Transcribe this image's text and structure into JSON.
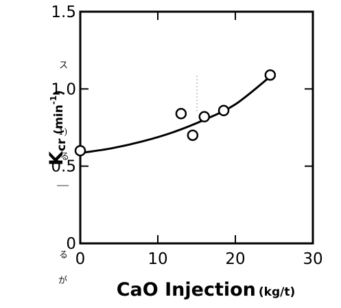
{
  "chart_data": {
    "type": "scatter",
    "title": "",
    "xlabel": "CaO Injection",
    "xlabel_units": "(kg/t)",
    "ylabel": "K",
    "ylabel_sub": "cr",
    "ylabel_units": "(min",
    "ylabel_exp": "-1",
    "ylabel_close": ")",
    "xlim": [
      0,
      30
    ],
    "ylim": [
      0,
      1.5
    ],
    "xticks": [
      "0",
      "10",
      "20",
      "30"
    ],
    "yticks": [
      "0",
      "0.5",
      "1.0",
      "1.5"
    ],
    "grid": false,
    "series": [
      {
        "marker": "open-circle",
        "points": [
          {
            "x": 0,
            "y": 0.6
          },
          {
            "x": 13,
            "y": 0.84
          },
          {
            "x": 14.5,
            "y": 0.7
          },
          {
            "x": 16,
            "y": 0.82
          },
          {
            "x": 18.5,
            "y": 0.86
          },
          {
            "x": 24.5,
            "y": 1.09
          }
        ]
      }
    ],
    "fit_curve": [
      {
        "x": 0,
        "y": 0.585
      },
      {
        "x": 4,
        "y": 0.615
      },
      {
        "x": 8,
        "y": 0.66
      },
      {
        "x": 12,
        "y": 0.72
      },
      {
        "x": 16,
        "y": 0.8
      },
      {
        "x": 20,
        "y": 0.9
      },
      {
        "x": 24.5,
        "y": 1.08
      }
    ]
  },
  "fragments": [
    "ス",
    "1)",
    "る",
    "る",
    "が"
  ],
  "colors": {
    "ink": "#000000",
    "background": "#ffffff"
  }
}
